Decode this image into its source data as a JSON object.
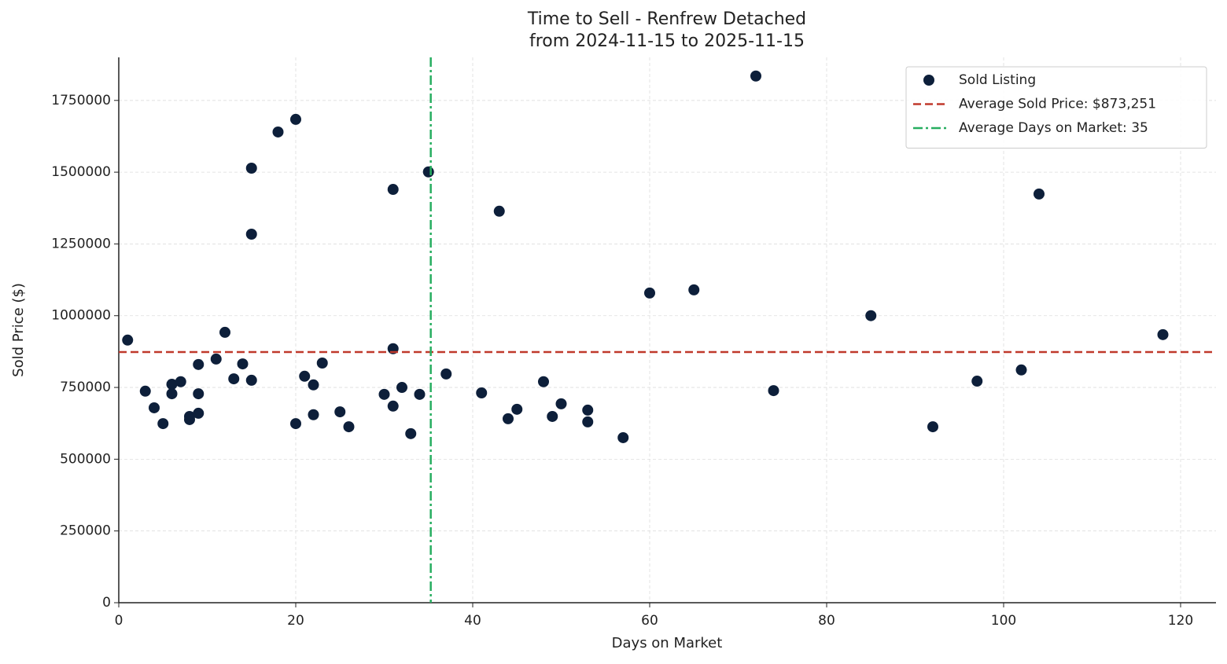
{
  "chart_data": {
    "type": "scatter",
    "title": "Time to Sell - Renfrew Detached",
    "subtitle": "from 2024-11-15 to 2025-11-15",
    "x_label": "Days on Market",
    "y_label": "Sold Price ($)",
    "xlim": [
      0,
      124
    ],
    "xticks": [
      0,
      20,
      40,
      60,
      80,
      100,
      120
    ],
    "ylim": [
      0,
      1900000
    ],
    "yticks": [
      0,
      250000,
      500000,
      750000,
      1000000,
      1250000,
      1500000,
      1750000
    ],
    "grid": true,
    "legend": "upper right",
    "series": [
      {
        "name": "Sold Listing",
        "color": "#0d1f3a",
        "x": [
          1,
          3,
          4,
          5,
          6,
          6,
          7,
          8,
          8,
          9,
          9,
          9,
          11,
          12,
          13,
          14,
          15,
          15,
          15,
          18,
          20,
          20,
          21,
          22,
          22,
          23,
          25,
          26,
          30,
          31,
          31,
          31,
          32,
          33,
          34,
          35,
          37,
          41,
          43,
          44,
          45,
          48,
          49,
          50,
          53,
          53,
          57,
          60,
          65,
          72,
          74,
          85,
          92,
          97,
          102,
          104,
          118
        ],
        "values": [
          915000,
          737000,
          679000,
          624000,
          761000,
          728000,
          770000,
          649000,
          638000,
          830000,
          728000,
          660000,
          849000,
          942000,
          780000,
          832000,
          1514000,
          1284000,
          775000,
          1640000,
          1684000,
          624000,
          789000,
          759000,
          655000,
          835000,
          665000,
          613000,
          726000,
          1440000,
          885000,
          685000,
          750000,
          589000,
          726000,
          1501000,
          797000,
          731000,
          1364000,
          641000,
          674000,
          770000,
          649000,
          693000,
          671000,
          630000,
          575000,
          1079000,
          1090000,
          1835000,
          739000,
          1000000,
          613000,
          772000,
          811000,
          1424000,
          934000
        ]
      }
    ],
    "reference_lines": [
      {
        "axis": "y",
        "value": 873251,
        "label": "Average Sold Price: $873,251",
        "color": "#c0392b",
        "style": "dashed"
      },
      {
        "axis": "x",
        "value": 35.26,
        "label": "Average Days on Market: 35",
        "color": "#27ae60",
        "style": "dashdot"
      }
    ]
  }
}
